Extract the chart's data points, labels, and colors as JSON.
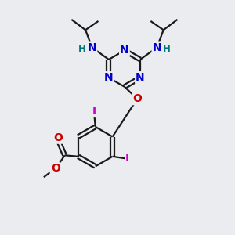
{
  "bg_color": "#eaecf0",
  "bond_color": "#1a1a1a",
  "bond_width": 1.6,
  "atom_colors": {
    "N": "#0000cc",
    "O": "#cc0000",
    "I": "#cc00cc",
    "C": "#1a1a1a",
    "H": "#007777"
  },
  "font_size_atom": 10,
  "font_size_small": 8.5
}
